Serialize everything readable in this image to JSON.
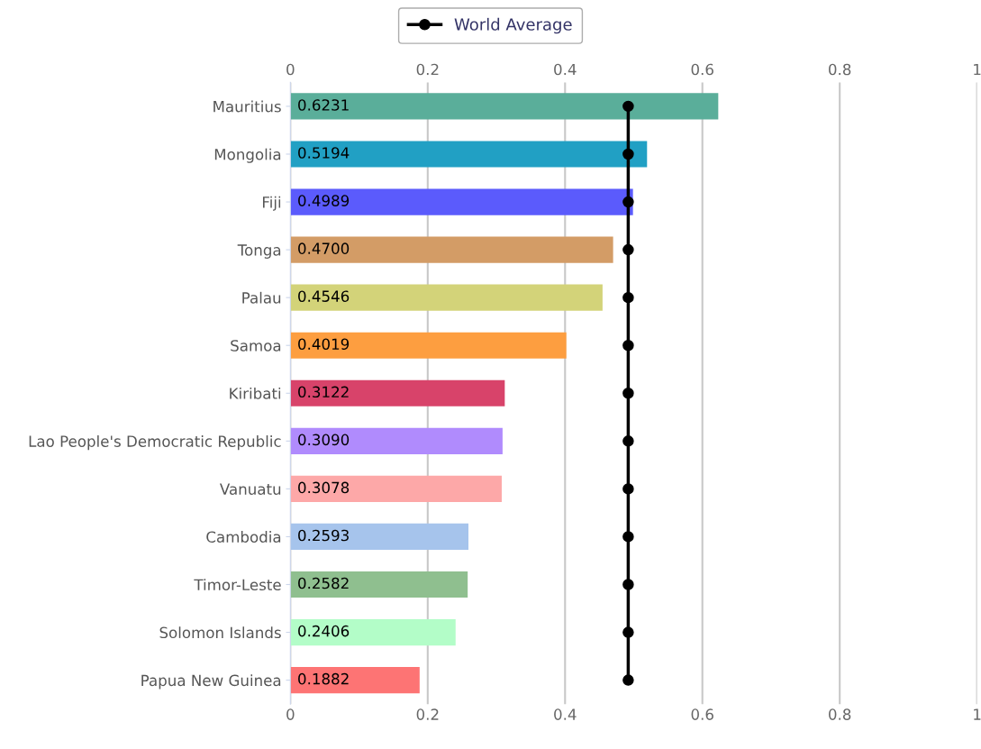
{
  "chart_data": {
    "type": "bar",
    "orientation": "horizontal",
    "categories": [
      "Mauritius",
      "Mongolia",
      "Fiji",
      "Tonga",
      "Palau",
      "Samoa",
      "Kiribati",
      "Lao People's Democratic Republic",
      "Vanuatu",
      "Cambodia",
      "Timor-Leste",
      "Solomon Islands",
      "Papua New Guinea"
    ],
    "values": [
      0.6231,
      0.5194,
      0.4989,
      0.47,
      0.4546,
      0.4019,
      0.3122,
      0.309,
      0.3078,
      0.2593,
      0.2582,
      0.2406,
      0.1882
    ],
    "value_labels": [
      "0.6231",
      "0.5194",
      "0.4989",
      "0.4700",
      "0.4546",
      "0.4019",
      "0.3122",
      "0.3090",
      "0.3078",
      "0.2593",
      "0.2582",
      "0.2406",
      "0.1882"
    ],
    "colors": [
      "#5aae9a",
      "#21a0c4",
      "#5b5bfc",
      "#d39c66",
      "#d3d379",
      "#fd9e40",
      "#d8436a",
      "#b08bfd",
      "#fda8a8",
      "#a6c4ec",
      "#8fbf8f",
      "#b3fdc8",
      "#fd7474"
    ],
    "series": [
      {
        "name": "World Average",
        "type": "line",
        "color": "#000000",
        "marker": "circle",
        "values": [
          0.492,
          0.492,
          0.492,
          0.492,
          0.492,
          0.492,
          0.492,
          0.492,
          0.492,
          0.492,
          0.492,
          0.492,
          0.492
        ]
      }
    ],
    "xlim": [
      0,
      1
    ],
    "xticks": [
      0,
      0.2,
      0.4,
      0.6,
      0.8,
      1
    ],
    "x2lim": [
      0,
      1
    ],
    "x2ticks": [
      0,
      0.2,
      0.4,
      0.6,
      0.8,
      1
    ],
    "grid": "x",
    "legend": "top"
  }
}
